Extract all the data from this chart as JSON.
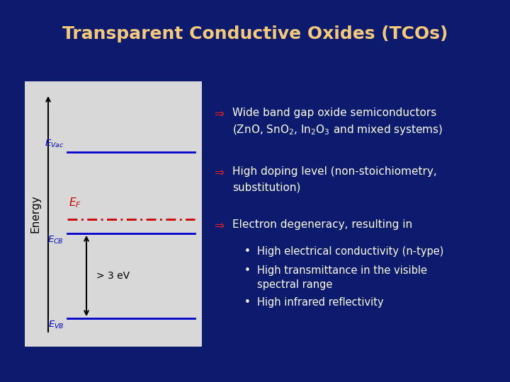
{
  "title": "Transparent Conductive Oxides (TCOs)",
  "title_color": "#F5C97A",
  "bg_color": "#0d1b6e",
  "diagram_bg": "#d8d8d8",
  "bullet_color": "#dd2222",
  "text_color": "#ffffff",
  "bullet1_line1": "Wide band gap oxide semiconductors",
  "bullet1_line2": "(ZnO, SnO$_2$, In$_2$O$_3$ and mixed systems)",
  "bullet2_line1": "High doping level (non-stoichiometry,",
  "bullet2_line2": "substitution)",
  "bullet3": "Electron degeneracy, resulting in",
  "sub1": "High electrical conductivity (n-type)",
  "sub2_line1": "High transmittance in the visible",
  "sub2_line2": "spectral range",
  "sub3": "High infrared reflectivity",
  "label_energy": "Energy",
  "label_3ev": "> 3 eV",
  "diagram_line_color": "#0000cc",
  "ef_line_color": "#cc0000",
  "arrow_color": "#000000",
  "title_fontsize": 18,
  "body_fontsize": 11,
  "sub_fontsize": 10.5
}
